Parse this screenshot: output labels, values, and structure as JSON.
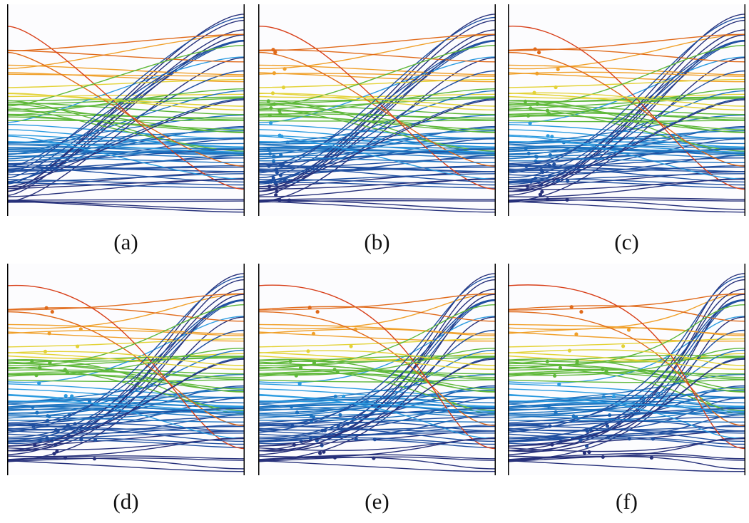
{
  "panels": [
    {
      "id": "a",
      "caption": "(a)",
      "stage": 0
    },
    {
      "id": "b",
      "caption": "(b)",
      "stage": 1
    },
    {
      "id": "c",
      "caption": "(c)",
      "stage": 2
    },
    {
      "id": "d",
      "caption": "(d)",
      "stage": 3
    },
    {
      "id": "e",
      "caption": "(e)",
      "stage": 4
    },
    {
      "id": "f",
      "caption": "(f)",
      "stage": 5
    }
  ],
  "colors": {
    "palette": [
      "#26307a",
      "#1f4fa0",
      "#1d73c0",
      "#2b9be0",
      "#5fb83a",
      "#e3d236",
      "#f0a02a",
      "#e06a1a",
      "#d8401a"
    ],
    "axis": "#000000"
  }
}
